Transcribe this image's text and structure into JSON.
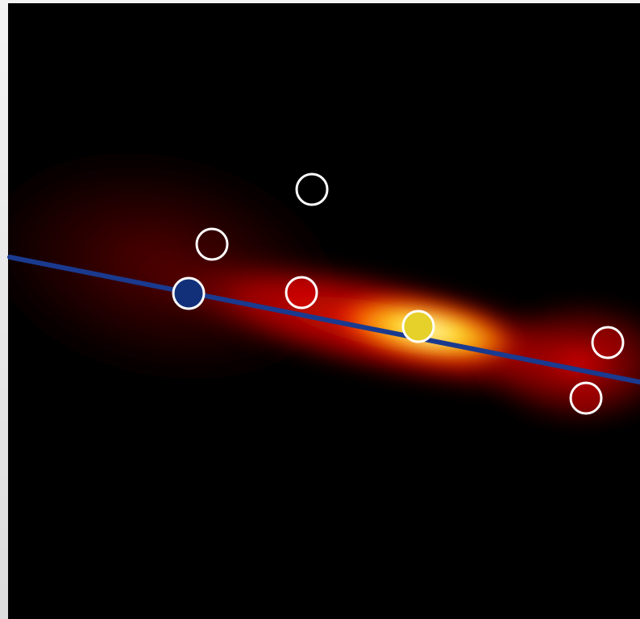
{
  "canvas": {
    "background": "#000000",
    "frame_color": "#e6e6e6"
  },
  "field": {
    "description_colors": {
      "core": "#fff6a0",
      "mid": "#ffd21a",
      "outer": "#e00000",
      "fade": "#3a0000"
    }
  },
  "regression_line": {
    "color": "#1a3a8f"
  },
  "points": [
    {
      "id": "p1",
      "fill": "none",
      "stroke": "#ffffff"
    },
    {
      "id": "p2",
      "fill": "#3a0000",
      "stroke": "#ffffff"
    },
    {
      "id": "p3",
      "fill": "#12307a",
      "stroke": "#ffffff"
    },
    {
      "id": "p4",
      "fill": "#e00000",
      "stroke": "#ffffff"
    },
    {
      "id": "p5",
      "fill": "#e6d02a",
      "stroke": "#ffffff"
    },
    {
      "id": "p6",
      "fill": "#b00000",
      "stroke": "#ffffff"
    },
    {
      "id": "p7",
      "fill": "#c20000",
      "stroke": "#ffffff"
    }
  ]
}
